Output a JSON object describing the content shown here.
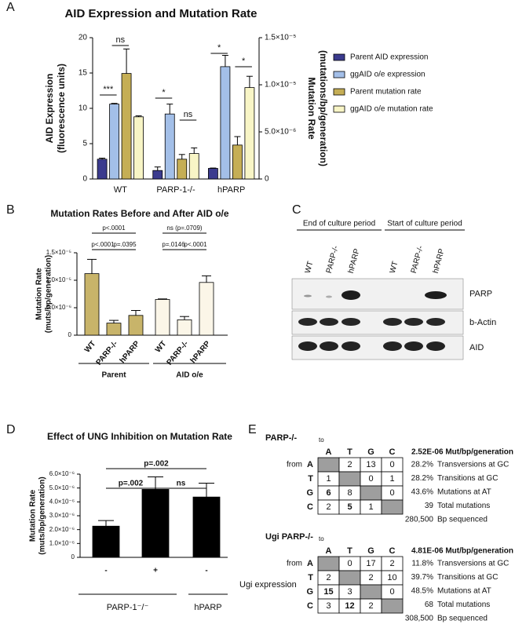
{
  "panel_labels": [
    "A",
    "B",
    "C",
    "D",
    "E"
  ],
  "chart_data": [
    {
      "type": "bar",
      "title": "AID Expression and Mutation Rate",
      "categories": [
        "WT",
        "PARP-1-/-",
        "hPARP"
      ],
      "ylabel": [
        "AID Expression",
        "(fluorescence units)"
      ],
      "y2label": [
        "Mutation Rate",
        "(mutations/bp/generation)"
      ],
      "ylim": [
        0,
        20
      ],
      "yticks": [
        0,
        5,
        10,
        15,
        20
      ],
      "y2lim": [
        0,
        1.5e-05
      ],
      "y2ticks": [
        0,
        {
          "value": 5e-06,
          "label": "5.0×10⁻⁶"
        },
        {
          "value": 1e-05,
          "label": "1.0×10⁻⁵"
        },
        {
          "value": 1.5e-05,
          "label": "1.5×10⁻⁵"
        }
      ],
      "legend": "right",
      "series": [
        {
          "name": "Parent AID expression",
          "color": "#3b3b8e",
          "values": [
            2.8,
            1.2,
            1.5
          ],
          "errors": [
            0.15,
            0.5,
            0.05
          ]
        },
        {
          "name": "ggAID o/e expression",
          "color": "#a3bfe8",
          "values": [
            10.6,
            9.2,
            15.9
          ],
          "errors": [
            0.1,
            1.4,
            1.6
          ]
        },
        {
          "name": "Parent mutation rate",
          "color": "#c5ae55",
          "axis": "y2",
          "values": [
            1.12e-05,
            2.1e-06,
            3.6e-06
          ],
          "errors": [
            2.6e-06,
            5e-07,
            9e-07
          ]
        },
        {
          "name": "ggAID o/e mutation rate",
          "color": "#f8f5c6",
          "axis": "y2",
          "values": [
            6.6e-06,
            2.7e-06,
            9.7e-06
          ],
          "errors": [
            1e-07,
            6e-07,
            1.2e-06
          ]
        }
      ],
      "annotations": [
        {
          "text": "***"
        },
        {
          "text": "ns"
        },
        {
          "text": "*"
        },
        {
          "text": "ns"
        },
        {
          "text": "*"
        },
        {
          "text": "*"
        }
      ]
    },
    {
      "type": "bar",
      "title": "Mutation Rates Before and After AID o/e",
      "categories": [
        "WT",
        "PARP-/-",
        "hPARP",
        "WT",
        "PARP-/-",
        "hPARP"
      ],
      "groups": [
        "Parent",
        "AID o/e"
      ],
      "ylabel": [
        "Mutation  Rate",
        "(muts/bp/generation)"
      ],
      "ylim": [
        0,
        1.5e-05
      ],
      "yticks": [
        0,
        {
          "value": 5e-06,
          "label": "5.0×10⁻⁶"
        },
        {
          "value": 1e-05,
          "label": "1.0×10⁻⁵"
        },
        {
          "value": 1.5e-05,
          "label": "1.5×10⁻⁵"
        }
      ],
      "values": [
        1.12e-05,
        2.2e-06,
        3.6e-06,
        6.5e-06,
        2.8e-06,
        9.6e-06
      ],
      "errors": [
        2.6e-06,
        5e-07,
        9e-07,
        1e-07,
        6e-07,
        1.2e-06
      ],
      "colors": [
        "#c8b46a",
        "#c8b46a",
        "#c8b46a",
        "#fbf6e8",
        "#fbf6e8",
        "#fbf6e8"
      ],
      "annotations": [
        {
          "text": "p<.0001"
        },
        {
          "text": "p<.0001"
        },
        {
          "text": "p=.0395"
        },
        {
          "text": "ns (p=.0709)"
        },
        {
          "text": "p=.0146"
        },
        {
          "text": "p<.0001"
        }
      ]
    },
    {
      "type": "bar",
      "title": "Effect of UNG Inhibition on Mutation Rate",
      "categories": [
        "-",
        "+",
        "-"
      ],
      "xlabel": "Ugi expression",
      "groups": [
        "PARP-1⁻/⁻",
        "hPARP"
      ],
      "ylabel": [
        "Mutation  Rate",
        "(muts/bp/generation)"
      ],
      "ylim": [
        0,
        6e-06
      ],
      "yticks": [
        0,
        {
          "value": 1e-06,
          "label": "1.0×10⁻⁶"
        },
        {
          "value": 2e-06,
          "label": "2.0×10⁻⁶"
        },
        {
          "value": 3e-06,
          "label": "3.0×10⁻⁶"
        },
        {
          "value": 4e-06,
          "label": "4.0×10⁻⁶"
        },
        {
          "value": 5e-06,
          "label": "5.0×10⁻⁶"
        },
        {
          "value": 6e-06,
          "label": "6.0×10⁻⁶"
        }
      ],
      "values": [
        2.25e-06,
        4.9e-06,
        4.35e-06
      ],
      "errors": [
        4e-07,
        9e-07,
        1e-06
      ],
      "color": "#000000",
      "annotations": [
        {
          "text": "p=.002"
        },
        {
          "text": "ns"
        },
        {
          "text": "p=.002"
        }
      ]
    }
  ],
  "blot": {
    "headers": [
      "End of culture period",
      "Start of culture period"
    ],
    "lanes": [
      "WT",
      "PARP-/-",
      "hPARP",
      "WT",
      "PARP-/-",
      "hPARP"
    ],
    "rows": [
      "PARP",
      "b-Actin",
      "AID"
    ]
  },
  "mutation_tables": [
    {
      "title": "PARP-/-",
      "to": "to",
      "from": "from",
      "columns": [
        "A",
        "T",
        "G",
        "C"
      ],
      "rows": [
        "A",
        "T",
        "G",
        "C"
      ],
      "cells": [
        [
          null,
          2,
          13,
          0
        ],
        [
          1,
          null,
          0,
          1
        ],
        [
          6,
          8,
          null,
          0
        ],
        [
          2,
          5,
          1,
          null
        ]
      ],
      "rate": "2.52E-06 Mut/bp/generation",
      "stats": [
        {
          "value": "28.2%",
          "label": "Transversions at GC"
        },
        {
          "value": "28.2%",
          "label": "Transitions at GC"
        },
        {
          "value": "43.6%",
          "label": "Mutations at AT"
        },
        {
          "value": "39",
          "label": "Total mutations"
        },
        {
          "value": "280,500",
          "label": "Bp sequenced"
        }
      ]
    },
    {
      "title": "Ugi PARP-/-",
      "to": "to",
      "from": "from",
      "columns": [
        "A",
        "T",
        "G",
        "C"
      ],
      "rows": [
        "A",
        "T",
        "G",
        "C"
      ],
      "cells": [
        [
          null,
          0,
          17,
          2
        ],
        [
          2,
          null,
          2,
          10
        ],
        [
          15,
          3,
          null,
          0
        ],
        [
          3,
          12,
          2,
          null
        ]
      ],
      "rate": "4.81E-06 Mut/bp/generation",
      "stats": [
        {
          "value": "11.8%",
          "label": "Transversions at GC"
        },
        {
          "value": "39.7%",
          "label": "Transitions at GC"
        },
        {
          "value": "48.5%",
          "label": "Mutations at AT"
        },
        {
          "value": "68",
          "label": "Total mutations"
        },
        {
          "value": "308,500",
          "label": "Bp sequenced"
        }
      ]
    }
  ]
}
